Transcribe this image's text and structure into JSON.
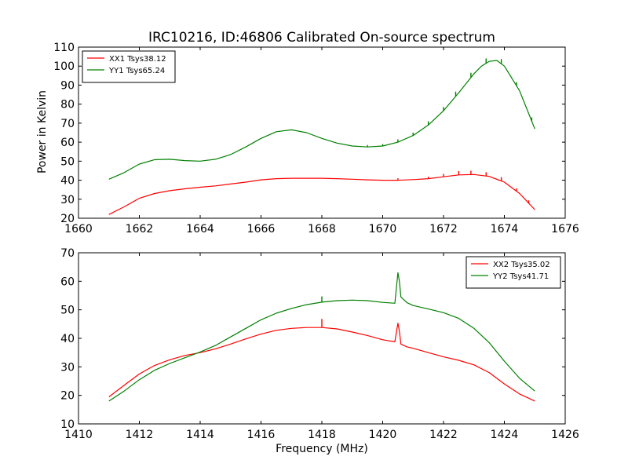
{
  "title": "IRC10216, ID:46806 Calibrated On-source spectrum",
  "ylabel": "Power in Kelvin",
  "xlabel": "Frequency (MHz)",
  "chart_data": [
    {
      "type": "line",
      "title": "IRC10216, ID:46806 Calibrated On-source spectrum",
      "xlabel": "",
      "ylabel": "Power in Kelvin",
      "xlim": [
        1660,
        1676
      ],
      "ylim": [
        20,
        110
      ],
      "xticks": [
        1660,
        1662,
        1664,
        1666,
        1668,
        1670,
        1672,
        1674,
        1676
      ],
      "yticks": [
        20,
        30,
        40,
        50,
        60,
        70,
        80,
        90,
        100,
        110
      ],
      "grid": false,
      "legend": "top-left",
      "series": [
        {
          "name": "XX1 Tsys38.12",
          "color": "#ff0000",
          "x": [
            1661.0,
            1661.5,
            1662.0,
            1662.5,
            1663.0,
            1663.5,
            1664.0,
            1664.5,
            1665.0,
            1665.5,
            1666.0,
            1666.5,
            1667.0,
            1667.5,
            1668.0,
            1668.5,
            1669.0,
            1669.5,
            1670.0,
            1670.5,
            1671.0,
            1671.5,
            1672.0,
            1672.5,
            1673.0,
            1673.5,
            1674.0,
            1674.5,
            1675.0
          ],
          "y": [
            22,
            26,
            30.5,
            33,
            34.5,
            35.5,
            36.3,
            37,
            38,
            39,
            40.2,
            40.8,
            41,
            41,
            41,
            40.8,
            40.5,
            40.2,
            40,
            40,
            40.3,
            40.8,
            41.8,
            42.8,
            43,
            42,
            39,
            33,
            24.5
          ],
          "spikes": [
            [
              1670.5,
              1
            ],
            [
              1671.5,
              1
            ],
            [
              1672.0,
              1.5
            ],
            [
              1672.5,
              2
            ],
            [
              1672.9,
              2
            ],
            [
              1673.4,
              2
            ],
            [
              1673.9,
              2
            ],
            [
              1674.4,
              1.5
            ],
            [
              1674.8,
              1.5
            ]
          ]
        },
        {
          "name": "YY1 Tsys65.24",
          "color": "#008000",
          "x": [
            1661.0,
            1661.5,
            1662.0,
            1662.5,
            1663.0,
            1663.5,
            1664.0,
            1664.5,
            1665.0,
            1665.5,
            1666.0,
            1666.5,
            1667.0,
            1667.5,
            1668.0,
            1668.5,
            1669.0,
            1669.5,
            1670.0,
            1670.5,
            1671.0,
            1671.5,
            1672.0,
            1672.5,
            1673.0,
            1673.25,
            1673.5,
            1673.75,
            1674.0,
            1674.5,
            1675.0
          ],
          "y": [
            40.5,
            44,
            48.5,
            50.8,
            51,
            50.3,
            50,
            51,
            53.5,
            57.5,
            62,
            65.5,
            66.5,
            65,
            62,
            59.5,
            58,
            57.5,
            58,
            60,
            63.5,
            69,
            76.5,
            86,
            96,
            100,
            102.5,
            103,
            100,
            87,
            67
          ],
          "spikes": [
            [
              1669.5,
              1
            ],
            [
              1670.0,
              1
            ],
            [
              1670.5,
              1.5
            ],
            [
              1671.0,
              1.5
            ],
            [
              1671.5,
              2
            ],
            [
              1672.0,
              2
            ],
            [
              1672.4,
              2.5
            ],
            [
              1672.9,
              2.5
            ],
            [
              1673.4,
              2.5
            ],
            [
              1673.9,
              2.5
            ],
            [
              1674.4,
              2
            ],
            [
              1674.9,
              2
            ]
          ]
        }
      ]
    },
    {
      "type": "line",
      "title": "",
      "xlabel": "Frequency (MHz)",
      "ylabel": "",
      "xlim": [
        1410,
        1426
      ],
      "ylim": [
        10,
        70
      ],
      "xticks": [
        1410,
        1412,
        1414,
        1416,
        1418,
        1420,
        1422,
        1424,
        1426
      ],
      "yticks": [
        10,
        20,
        30,
        40,
        50,
        60,
        70
      ],
      "grid": false,
      "legend": "top-right",
      "series": [
        {
          "name": "XX2 Tsys35.02",
          "color": "#ff0000",
          "x": [
            1411.0,
            1411.5,
            1412.0,
            1412.5,
            1413.0,
            1413.5,
            1414.0,
            1414.5,
            1415.0,
            1415.5,
            1416.0,
            1416.5,
            1417.0,
            1417.5,
            1418.0,
            1418.5,
            1419.0,
            1419.5,
            1420.0,
            1420.4,
            1420.5,
            1420.55,
            1420.6,
            1420.8,
            1421.0,
            1421.5,
            1422.0,
            1422.5,
            1423.0,
            1423.5,
            1424.0,
            1424.5,
            1425.0
          ],
          "y": [
            19.5,
            23.5,
            27.5,
            30.5,
            32.5,
            34,
            35,
            36.3,
            38,
            39.8,
            41.5,
            42.8,
            43.5,
            43.8,
            43.8,
            43.3,
            42.2,
            41,
            39.5,
            38.8,
            45.3,
            42.5,
            38,
            37,
            36.5,
            35,
            33.5,
            32.3,
            30.7,
            28,
            24,
            20.5,
            18
          ],
          "spikes": [
            [
              1418.0,
              3
            ]
          ]
        },
        {
          "name": "YY2 Tsys41.71",
          "color": "#008000",
          "x": [
            1411.0,
            1411.5,
            1412.0,
            1412.5,
            1413.0,
            1413.5,
            1414.0,
            1414.5,
            1415.0,
            1415.5,
            1416.0,
            1416.5,
            1417.0,
            1417.5,
            1418.0,
            1418.5,
            1419.0,
            1419.5,
            1420.0,
            1420.4,
            1420.5,
            1420.55,
            1420.6,
            1420.8,
            1421.0,
            1421.5,
            1422.0,
            1422.5,
            1423.0,
            1423.5,
            1424.0,
            1424.5,
            1425.0
          ],
          "y": [
            18,
            21.5,
            25.5,
            28.8,
            31.2,
            33.2,
            35.2,
            37.5,
            40.5,
            43.5,
            46.5,
            48.8,
            50.5,
            51.8,
            52.7,
            53.2,
            53.4,
            53.2,
            52.6,
            52.3,
            63,
            60,
            54.5,
            52.5,
            51.5,
            50.3,
            49,
            47,
            43.5,
            38.5,
            32,
            26,
            21.5
          ],
          "spikes": [
            [
              1418.0,
              2
            ]
          ]
        }
      ]
    }
  ]
}
